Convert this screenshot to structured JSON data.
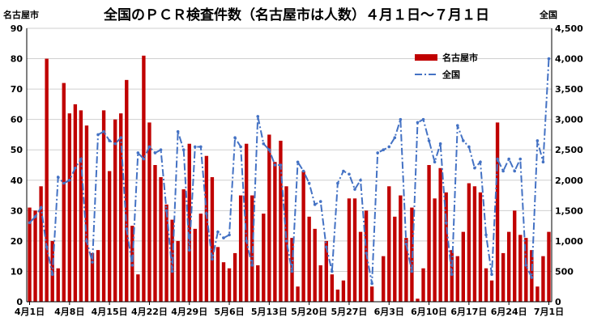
{
  "colors": {
    "bar": "#C00000",
    "line": "#4472C4",
    "grid": "#cfcfcf",
    "axis": "#000000"
  },
  "chart_data": {
    "type": "bar+line",
    "title": "全国のＰＣＲ検査件数（名古屋市は人数）４月１日～７月１日",
    "left_axis_unit": "名古屋市",
    "right_axis_unit": "全国",
    "left_ylim": [
      0,
      90
    ],
    "left_yticks": [
      "0",
      "10",
      "20",
      "30",
      "40",
      "50",
      "60",
      "70",
      "80",
      "90"
    ],
    "right_ylim": [
      0,
      4500
    ],
    "right_yticks": [
      "0",
      "500",
      "1,000",
      "1,500",
      "2,000",
      "2,500",
      "3,000",
      "3,500",
      "4,000",
      "4,500"
    ],
    "x_tick_labels": [
      "4月1日",
      "4月8日",
      "4月15日",
      "4月22日",
      "4月29日",
      "5月6日",
      "5月13日",
      "5月20日",
      "5月27日",
      "6月3日",
      "6月10日",
      "6月17日",
      "6月24日",
      "7月1日"
    ],
    "grid": true,
    "legend_position": "top-right",
    "series": [
      {
        "name": "名古屋市",
        "type": "bar",
        "axis": "left",
        "values": [
          31,
          30,
          38,
          80,
          20,
          11,
          72,
          62,
          65,
          63,
          58,
          16,
          17,
          63,
          43,
          60,
          62,
          73,
          25,
          9,
          81,
          59,
          45,
          41,
          32,
          27,
          20,
          37,
          52,
          24,
          29,
          48,
          41,
          18,
          13,
          11,
          16,
          35,
          52,
          35,
          12,
          29,
          55,
          46,
          53,
          38,
          21,
          5,
          43,
          28,
          24,
          12,
          20,
          9,
          4,
          7,
          34,
          34,
          23,
          30,
          5,
          0,
          15,
          38,
          28,
          35,
          21,
          31,
          1,
          11,
          45,
          34,
          44,
          36,
          17,
          15,
          23,
          39,
          38,
          36,
          11,
          7,
          59,
          16,
          23,
          30,
          22,
          21,
          17,
          5,
          15,
          23
        ]
      },
      {
        "name": "全国",
        "type": "line",
        "axis": "right",
        "values": [
          1300,
          1400,
          1550,
          900,
          450,
          2050,
          1950,
          2000,
          2200,
          2350,
          1000,
          650,
          2750,
          2800,
          2650,
          2600,
          2700,
          1200,
          600,
          2450,
          2350,
          2550,
          2450,
          2500,
          1500,
          500,
          2800,
          2500,
          850,
          2550,
          2550,
          1450,
          700,
          1150,
          1050,
          1100,
          2700,
          2550,
          1000,
          600,
          3050,
          2600,
          2500,
          2250,
          2250,
          1000,
          500,
          2300,
          2150,
          1950,
          1600,
          1650,
          900,
          500,
          1950,
          2150,
          2100,
          1850,
          2000,
          800,
          300,
          2450,
          2500,
          2550,
          2700,
          3000,
          950,
          500,
          2950,
          3000,
          2650,
          2300,
          2600,
          1300,
          450,
          2900,
          2650,
          2550,
          2200,
          2300,
          1100,
          450,
          2350,
          2150,
          2350,
          2150,
          2350,
          600,
          400,
          2650,
          2300,
          4000
        ]
      }
    ]
  }
}
